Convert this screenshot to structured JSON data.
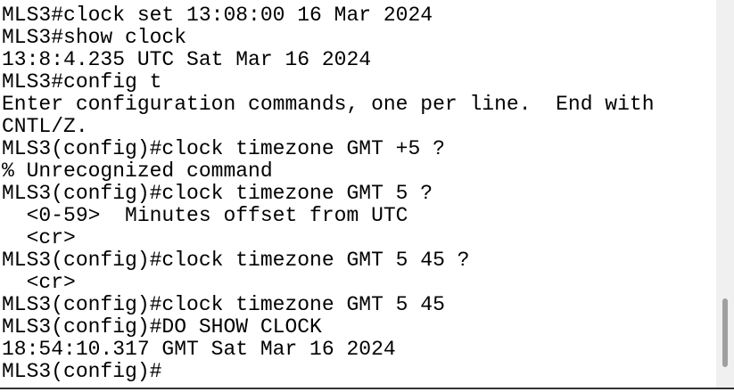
{
  "terminal": {
    "lines": [
      "MLS3#clock set 13:08:00 16 Mar 2024",
      "MLS3#show clock",
      "13:8:4.235 UTC Sat Mar 16 2024",
      "MLS3#config t",
      "Enter configuration commands, one per line.  End with",
      "CNTL/Z.",
      "MLS3(config)#clock timezone GMT +5 ?",
      "% Unrecognized command",
      "MLS3(config)#clock timezone GMT 5 ?",
      "  <0-59>  Minutes offset from UTC",
      "  <cr>",
      "MLS3(config)#clock timezone GMT 5 45 ?",
      "  <cr>",
      "MLS3(config)#clock timezone GMT 5 45",
      "MLS3(config)#DO SHOW CLOCK",
      "18:54:10.317 GMT Sat Mar 16 2024",
      "MLS3(config)#"
    ]
  }
}
